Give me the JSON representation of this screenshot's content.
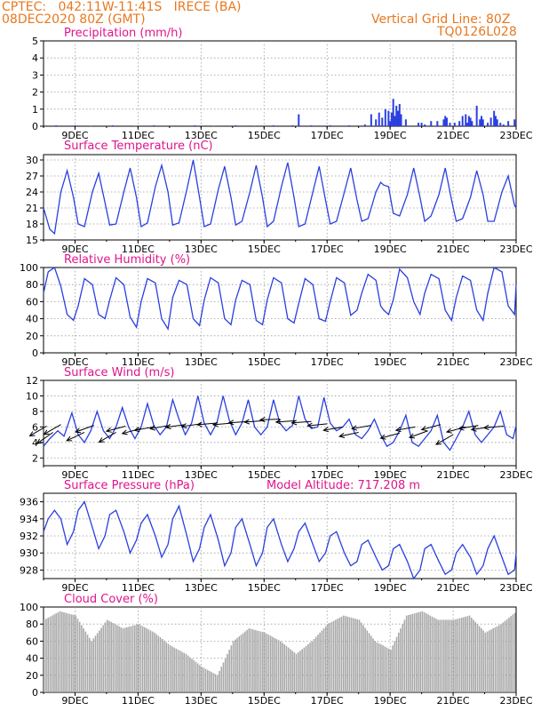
{
  "header": {
    "line1": "CPTEC:   042:11W-11:41S   IRECE (BA)",
    "line2": "08DEC2020 80Z (GMT)",
    "right1": "Vertical Grid Line: 80Z",
    "right2": "TQ0126L028"
  },
  "colors": {
    "header": "#e8781e",
    "title": "#e0148c",
    "line": "#2a3fe0",
    "cloud": "#a8a8a8",
    "grid": "#9a9a9a"
  },
  "x_axis": {
    "range_days": [
      8.0,
      23.0
    ],
    "ticks": [
      9,
      11,
      13,
      15,
      17,
      19,
      21,
      23
    ],
    "labels": [
      "9DEC",
      "11DEC",
      "13DEC",
      "15DEC",
      "17DEC",
      "19DEC",
      "21DEC",
      "23DEC"
    ]
  },
  "chart_data": [
    {
      "id": "precip",
      "type": "bar",
      "title": "Precipitation (mm/h)",
      "ylim": [
        0,
        5
      ],
      "yticks": [
        0,
        1,
        2,
        3,
        4,
        5
      ],
      "x_unit": "day of December 2020",
      "x": [
        8.4,
        9.0,
        9.5,
        10.2,
        10.9,
        11.5,
        12.2,
        12.8,
        13.4,
        14.1,
        14.7,
        15.3,
        15.9,
        16.1,
        16.5,
        17.1,
        17.7,
        18.2,
        18.4,
        18.55,
        18.65,
        18.75,
        18.85,
        18.95,
        19.0,
        19.05,
        19.1,
        19.15,
        19.2,
        19.25,
        19.3,
        19.35,
        19.5,
        19.9,
        20.0,
        20.1,
        20.3,
        20.5,
        20.7,
        20.75,
        20.8,
        20.9,
        21.05,
        21.2,
        21.3,
        21.4,
        21.45,
        21.5,
        21.55,
        21.6,
        21.75,
        21.85,
        21.9,
        21.95,
        22.1,
        22.2,
        22.3,
        22.35,
        22.4,
        22.5,
        22.6,
        22.75,
        22.95
      ],
      "values": [
        0.05,
        0.05,
        0.03,
        0.05,
        0.03,
        0.05,
        0.04,
        0.05,
        0.03,
        0.05,
        0.03,
        0.05,
        0.05,
        0.7,
        0.05,
        0.05,
        0.05,
        0.1,
        0.7,
        0.4,
        0.8,
        0.5,
        1.0,
        0.9,
        0.3,
        0.8,
        1.6,
        0.6,
        1.2,
        0.9,
        1.3,
        0.7,
        0.4,
        0.2,
        0.2,
        0.1,
        0.3,
        0.3,
        0.4,
        0.6,
        0.5,
        0.2,
        0.2,
        0.3,
        0.6,
        0.7,
        0.2,
        0.6,
        0.5,
        0.3,
        1.2,
        0.4,
        0.6,
        0.4,
        0.2,
        0.5,
        0.9,
        0.6,
        0.4,
        0.2,
        0.1,
        0.3,
        0.4
      ]
    },
    {
      "id": "temp",
      "type": "line",
      "title": "Surface Temperature (nC)",
      "ylim": [
        15,
        31
      ],
      "yticks": [
        15,
        18,
        21,
        24,
        27,
        30
      ],
      "x_unit": "day of December 2020",
      "x": [
        8.0,
        8.2,
        8.35,
        8.55,
        8.75,
        8.95,
        9.1,
        9.3,
        9.55,
        9.75,
        9.95,
        10.1,
        10.3,
        10.55,
        10.75,
        10.95,
        11.1,
        11.3,
        11.55,
        11.75,
        11.95,
        12.1,
        12.3,
        12.55,
        12.75,
        12.95,
        13.1,
        13.3,
        13.55,
        13.75,
        13.95,
        14.1,
        14.3,
        14.55,
        14.75,
        14.95,
        15.1,
        15.3,
        15.55,
        15.75,
        15.95,
        16.1,
        16.3,
        16.55,
        16.75,
        16.95,
        17.1,
        17.3,
        17.55,
        17.75,
        17.95,
        18.1,
        18.3,
        18.55,
        18.7,
        18.8,
        18.95,
        19.1,
        19.3,
        19.55,
        19.75,
        19.95,
        20.1,
        20.3,
        20.55,
        20.75,
        20.95,
        21.1,
        21.3,
        21.55,
        21.75,
        21.95,
        22.1,
        22.3,
        22.55,
        22.75,
        22.95,
        23.0
      ],
      "values": [
        21,
        17,
        16.2,
        24,
        28,
        23,
        18,
        17.5,
        24,
        27.5,
        22,
        17.8,
        18,
        24,
        28.5,
        23,
        17.5,
        18.2,
        25,
        29,
        24,
        17.8,
        18.2,
        24.5,
        30,
        23,
        17.5,
        18,
        24.5,
        28.8,
        23,
        17.8,
        18.5,
        24,
        29,
        23,
        17.5,
        18.5,
        25,
        29.5,
        23,
        17.5,
        18,
        24,
        28.8,
        22.5,
        18,
        18.5,
        24,
        28.5,
        22.5,
        18.5,
        19,
        24,
        25.8,
        25.3,
        25,
        20,
        19.5,
        23.5,
        28.5,
        23,
        18.5,
        19.5,
        23.5,
        28.5,
        22.5,
        18.5,
        19,
        23,
        28,
        23.5,
        18.5,
        18.5,
        24,
        27,
        21.5,
        21
      ]
    },
    {
      "id": "rh",
      "type": "line",
      "title": "Relative Humidity (%)",
      "ylim": [
        0,
        100
      ],
      "yticks": [
        0,
        20,
        40,
        60,
        80,
        100
      ],
      "x_unit": "day of December 2020",
      "x": [
        8.0,
        8.15,
        8.35,
        8.55,
        8.75,
        8.95,
        9.1,
        9.3,
        9.55,
        9.75,
        9.95,
        10.1,
        10.3,
        10.55,
        10.75,
        10.95,
        11.1,
        11.3,
        11.55,
        11.75,
        11.95,
        12.1,
        12.3,
        12.55,
        12.75,
        12.95,
        13.1,
        13.3,
        13.55,
        13.75,
        13.95,
        14.1,
        14.3,
        14.55,
        14.75,
        14.95,
        15.1,
        15.3,
        15.55,
        15.75,
        15.95,
        16.1,
        16.3,
        16.55,
        16.75,
        16.95,
        17.1,
        17.3,
        17.55,
        17.75,
        17.95,
        18.1,
        18.3,
        18.55,
        18.7,
        18.8,
        18.95,
        19.1,
        19.3,
        19.55,
        19.75,
        19.95,
        20.1,
        20.3,
        20.55,
        20.75,
        20.95,
        21.1,
        21.3,
        21.55,
        21.75,
        21.95,
        22.1,
        22.3,
        22.55,
        22.75,
        22.95,
        23.0
      ],
      "values": [
        70,
        95,
        100,
        78,
        45,
        38,
        55,
        87,
        80,
        45,
        40,
        62,
        88,
        80,
        42,
        30,
        60,
        87,
        82,
        40,
        28,
        65,
        85,
        80,
        40,
        32,
        62,
        88,
        82,
        40,
        33,
        62,
        85,
        80,
        38,
        33,
        62,
        88,
        82,
        40,
        35,
        58,
        87,
        80,
        40,
        37,
        60,
        88,
        82,
        44,
        50,
        70,
        92,
        85,
        55,
        50,
        45,
        62,
        98,
        88,
        60,
        45,
        70,
        92,
        87,
        50,
        38,
        65,
        90,
        85,
        50,
        38,
        70,
        100,
        95,
        55,
        45,
        80
      ]
    },
    {
      "id": "wind",
      "type": "line",
      "title": "Surface Wind (m/s)",
      "ylim": [
        1,
        12
      ],
      "yticks": [
        2,
        4,
        6,
        8,
        10,
        12
      ],
      "x_unit": "day of December 2020",
      "x": [
        8.0,
        8.2,
        8.45,
        8.65,
        8.9,
        9.1,
        9.3,
        9.5,
        9.7,
        9.9,
        10.1,
        10.3,
        10.5,
        10.7,
        10.9,
        11.1,
        11.3,
        11.5,
        11.7,
        11.9,
        12.1,
        12.3,
        12.5,
        12.7,
        12.9,
        13.1,
        13.3,
        13.5,
        13.7,
        13.9,
        14.1,
        14.3,
        14.5,
        14.7,
        14.9,
        15.1,
        15.3,
        15.5,
        15.7,
        15.9,
        16.1,
        16.3,
        16.5,
        16.7,
        16.9,
        17.1,
        17.3,
        17.5,
        17.7,
        17.9,
        18.1,
        18.3,
        18.5,
        18.7,
        18.9,
        19.1,
        19.3,
        19.5,
        19.7,
        19.9,
        20.1,
        20.3,
        20.5,
        20.7,
        20.9,
        21.1,
        21.3,
        21.5,
        21.7,
        21.9,
        22.1,
        22.3,
        22.5,
        22.7,
        22.9,
        23.0
      ],
      "values": [
        3.5,
        4.5,
        5.5,
        4.8,
        7.8,
        5,
        4,
        5.5,
        8,
        5.5,
        4.5,
        6,
        8.5,
        6,
        4.5,
        6,
        9,
        6.2,
        5,
        6,
        9.5,
        7,
        5,
        6.5,
        10,
        6.5,
        5,
        6.5,
        10,
        6.8,
        5,
        6.5,
        9.5,
        6,
        5,
        6,
        9.5,
        6.5,
        5.5,
        6.2,
        10,
        7,
        5.8,
        6,
        9.8,
        6.5,
        5.5,
        6,
        7,
        5,
        4.5,
        5.5,
        7,
        5,
        3.5,
        4,
        5.5,
        7.5,
        4,
        3.5,
        4.5,
        5.5,
        7.5,
        4,
        3,
        4.5,
        6,
        8,
        5,
        4,
        5,
        6,
        8,
        5,
        4.5,
        6.2
      ],
      "arrows": [
        {
          "x": 8.1,
          "speed": 6.1,
          "dir": -150
        },
        {
          "x": 8.3,
          "speed": 5.3,
          "dir": -145
        },
        {
          "x": 8.55,
          "speed": 6.3,
          "dir": -150
        },
        {
          "x": 9.3,
          "speed": 5.3,
          "dir": -155
        },
        {
          "x": 9.6,
          "speed": 6.2,
          "dir": -160
        },
        {
          "x": 10.3,
          "speed": 5.3,
          "dir": -150
        },
        {
          "x": 10.6,
          "speed": 6.1,
          "dir": -165
        },
        {
          "x": 11.1,
          "speed": 5.8,
          "dir": -165
        },
        {
          "x": 11.5,
          "speed": 6.0,
          "dir": -170
        },
        {
          "x": 12.0,
          "speed": 6.2,
          "dir": -170
        },
        {
          "x": 12.5,
          "speed": 6.3,
          "dir": -172
        },
        {
          "x": 13.0,
          "speed": 6.4,
          "dir": -172
        },
        {
          "x": 13.5,
          "speed": 6.5,
          "dir": -175
        },
        {
          "x": 14.0,
          "speed": 6.5,
          "dir": -175
        },
        {
          "x": 14.5,
          "speed": 6.7,
          "dir": -176
        },
        {
          "x": 15.0,
          "speed": 6.8,
          "dir": -176
        },
        {
          "x": 15.5,
          "speed": 7.0,
          "dir": -178
        },
        {
          "x": 16.0,
          "speed": 6.8,
          "dir": -176
        },
        {
          "x": 16.5,
          "speed": 6.7,
          "dir": -176
        },
        {
          "x": 17.0,
          "speed": 6.4,
          "dir": -174
        },
        {
          "x": 17.5,
          "speed": 6.0,
          "dir": -170
        },
        {
          "x": 18.0,
          "speed": 5.3,
          "dir": -168
        },
        {
          "x": 18.4,
          "speed": 6.2,
          "dir": -170
        },
        {
          "x": 19.3,
          "speed": 5.2,
          "dir": -165
        },
        {
          "x": 19.8,
          "speed": 6.0,
          "dir": -170
        },
        {
          "x": 20.2,
          "speed": 5.5,
          "dir": -160
        },
        {
          "x": 20.6,
          "speed": 6.3,
          "dir": -165
        },
        {
          "x": 21.0,
          "speed": 5.0,
          "dir": -150
        },
        {
          "x": 21.4,
          "speed": 6.0,
          "dir": -165
        },
        {
          "x": 21.8,
          "speed": 6.2,
          "dir": -170
        },
        {
          "x": 22.2,
          "speed": 6.0,
          "dir": -172
        },
        {
          "x": 22.6,
          "speed": 6.1,
          "dir": -175
        }
      ]
    },
    {
      "id": "pressure",
      "type": "line",
      "title": "Surface Pressure (hPa)",
      "subtitle": "Model Altitude: 717.208  m",
      "ylim": [
        927,
        937
      ],
      "yticks": [
        928,
        930,
        932,
        934,
        936
      ],
      "x_unit": "day of December 2020",
      "x": [
        8.0,
        8.15,
        8.35,
        8.55,
        8.75,
        8.95,
        9.1,
        9.3,
        9.55,
        9.75,
        9.95,
        10.1,
        10.3,
        10.55,
        10.75,
        10.95,
        11.1,
        11.3,
        11.55,
        11.75,
        11.95,
        12.1,
        12.3,
        12.55,
        12.75,
        12.95,
        13.1,
        13.3,
        13.55,
        13.75,
        13.95,
        14.1,
        14.3,
        14.55,
        14.75,
        14.95,
        15.1,
        15.3,
        15.55,
        15.75,
        15.95,
        16.1,
        16.3,
        16.55,
        16.75,
        16.95,
        17.1,
        17.3,
        17.55,
        17.75,
        17.95,
        18.1,
        18.3,
        18.55,
        18.75,
        18.95,
        19.1,
        19.3,
        19.55,
        19.75,
        19.95,
        20.1,
        20.3,
        20.55,
        20.75,
        20.95,
        21.1,
        21.3,
        21.55,
        21.75,
        21.95,
        22.1,
        22.3,
        22.55,
        22.75,
        22.95,
        23.0
      ],
      "values": [
        932.5,
        934,
        935,
        934,
        931,
        932.5,
        935,
        936,
        933,
        930.5,
        932,
        934.5,
        935,
        932.5,
        930,
        931.5,
        933.5,
        934.5,
        932,
        929.5,
        931,
        934,
        935.5,
        932,
        929,
        930.5,
        933,
        934.5,
        931.5,
        928.5,
        930,
        933,
        934,
        931,
        928.5,
        930,
        933,
        934,
        931,
        929,
        930.5,
        932.5,
        933.5,
        931,
        929,
        930,
        932,
        932.5,
        930,
        928.5,
        929,
        931,
        931.5,
        929.5,
        928,
        928.5,
        930.5,
        931,
        929,
        927,
        928,
        930.5,
        931,
        929,
        927.5,
        928,
        930,
        931,
        929.5,
        927.5,
        928.5,
        930.5,
        932,
        929.5,
        927.5,
        928,
        930
      ]
    },
    {
      "id": "cloud",
      "type": "bar",
      "title": "Cloud Cover (%)",
      "ylim": [
        0,
        100
      ],
      "yticks": [
        0,
        20,
        40,
        60,
        80,
        100
      ],
      "x_unit": "day of December 2020",
      "x": [
        8.0,
        8.5,
        9.0,
        9.5,
        10.0,
        10.5,
        11.0,
        11.5,
        12.0,
        12.5,
        13.0,
        13.5,
        14.0,
        14.5,
        15.0,
        15.5,
        16.0,
        16.5,
        17.0,
        17.5,
        18.0,
        18.5,
        19.0,
        19.5,
        20.0,
        20.5,
        21.0,
        21.5,
        22.0,
        22.5,
        23.0
      ],
      "values": [
        85,
        95,
        90,
        60,
        85,
        75,
        80,
        70,
        55,
        45,
        30,
        20,
        60,
        75,
        70,
        60,
        45,
        60,
        80,
        90,
        85,
        60,
        50,
        90,
        95,
        85,
        85,
        90,
        70,
        80,
        95
      ]
    }
  ]
}
